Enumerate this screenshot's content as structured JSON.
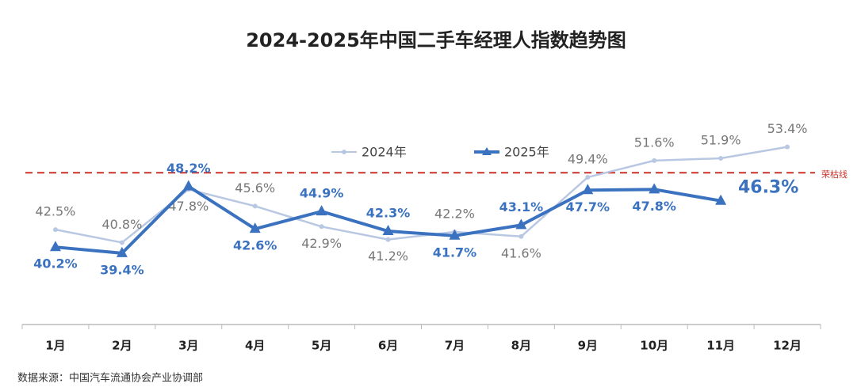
{
  "chart_data": {
    "type": "line",
    "title": "2024-2025年中国二手车经理人指数趋势图",
    "categories": [
      "1月",
      "2月",
      "3月",
      "4月",
      "5月",
      "6月",
      "7月",
      "8月",
      "9月",
      "10月",
      "11月",
      "12月"
    ],
    "series": [
      {
        "name": "2024年",
        "color": "#b9c8e2",
        "values": [
          42.5,
          40.8,
          47.8,
          45.6,
          42.9,
          41.2,
          42.2,
          41.6,
          49.4,
          51.6,
          51.9,
          53.4
        ],
        "value_labels": [
          "42.5%",
          "40.8%",
          "47.8%",
          "45.6%",
          "42.9%",
          "41.2%",
          "42.2%",
          "41.6%",
          "49.4%",
          "51.6%",
          "51.9%",
          "53.4%"
        ]
      },
      {
        "name": "2025年",
        "color": "#3a72c0",
        "values": [
          40.2,
          39.4,
          48.2,
          42.6,
          44.9,
          42.3,
          41.7,
          43.1,
          47.7,
          47.8,
          46.3,
          null
        ],
        "value_labels": [
          "40.2%",
          "39.4%",
          "48.2%",
          "42.6%",
          "44.9%",
          "42.3%",
          "41.7%",
          "43.1%",
          "47.7%",
          "47.8%",
          "46.3%",
          null
        ]
      }
    ],
    "ylim": [
      30,
      66.5
    ],
    "reference_line": {
      "value": 50,
      "label": "荣枯线",
      "color": "#c8332b"
    },
    "source": "数据来源：中国汽车流通协会产业协调部"
  }
}
